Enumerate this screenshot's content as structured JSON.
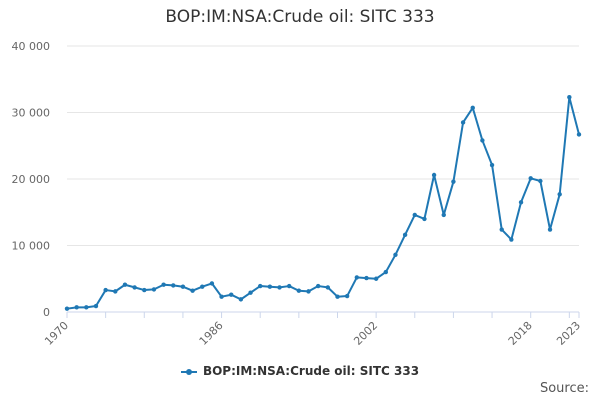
{
  "chart_data": {
    "type": "line",
    "title": "BOP:IM:NSA:Crude oil: SITC 333",
    "xlabel": "",
    "ylabel": "",
    "xlim": [
      1970,
      2023
    ],
    "ylim": [
      0,
      40000
    ],
    "y_ticks": [
      0,
      10000,
      20000,
      30000,
      40000
    ],
    "y_tick_labels": [
      "0",
      "10 000",
      "20 000",
      "30 000",
      "40 000"
    ],
    "x_ticks": [
      1970,
      1986,
      2002,
      2018,
      2023
    ],
    "x_tick_labels": [
      "1970",
      "1986",
      "2002",
      "2018",
      "2023"
    ],
    "grid": "horizontal",
    "legend_position": "bottom",
    "color": "#1f78b4",
    "series": [
      {
        "name": "BOP:IM:NSA:Crude oil: SITC 333",
        "x": [
          1970,
          1971,
          1972,
          1973,
          1974,
          1975,
          1976,
          1977,
          1978,
          1979,
          1980,
          1981,
          1982,
          1983,
          1984,
          1985,
          1986,
          1987,
          1988,
          1989,
          1990,
          1991,
          1992,
          1993,
          1994,
          1995,
          1996,
          1997,
          1998,
          1999,
          2000,
          2001,
          2002,
          2003,
          2004,
          2005,
          2006,
          2007,
          2008,
          2009,
          2010,
          2011,
          2012,
          2013,
          2014,
          2015,
          2016,
          2017,
          2018,
          2019,
          2020,
          2021,
          2022,
          2023
        ],
        "values": [
          500,
          700,
          700,
          900,
          3300,
          3100,
          4100,
          3700,
          3300,
          3400,
          4100,
          4000,
          3800,
          3200,
          3800,
          4300,
          2300,
          2600,
          1900,
          2900,
          3900,
          3800,
          3700,
          3900,
          3200,
          3100,
          3900,
          3700,
          2300,
          2400,
          5200,
          5100,
          5000,
          6000,
          8600,
          11600,
          14600,
          14000,
          20600,
          14600,
          19600,
          28500,
          30700,
          25800,
          22100,
          12400,
          10900,
          16500,
          20100,
          19700,
          12400,
          17700,
          32300,
          26700
        ]
      }
    ]
  },
  "source_label": "Source:"
}
